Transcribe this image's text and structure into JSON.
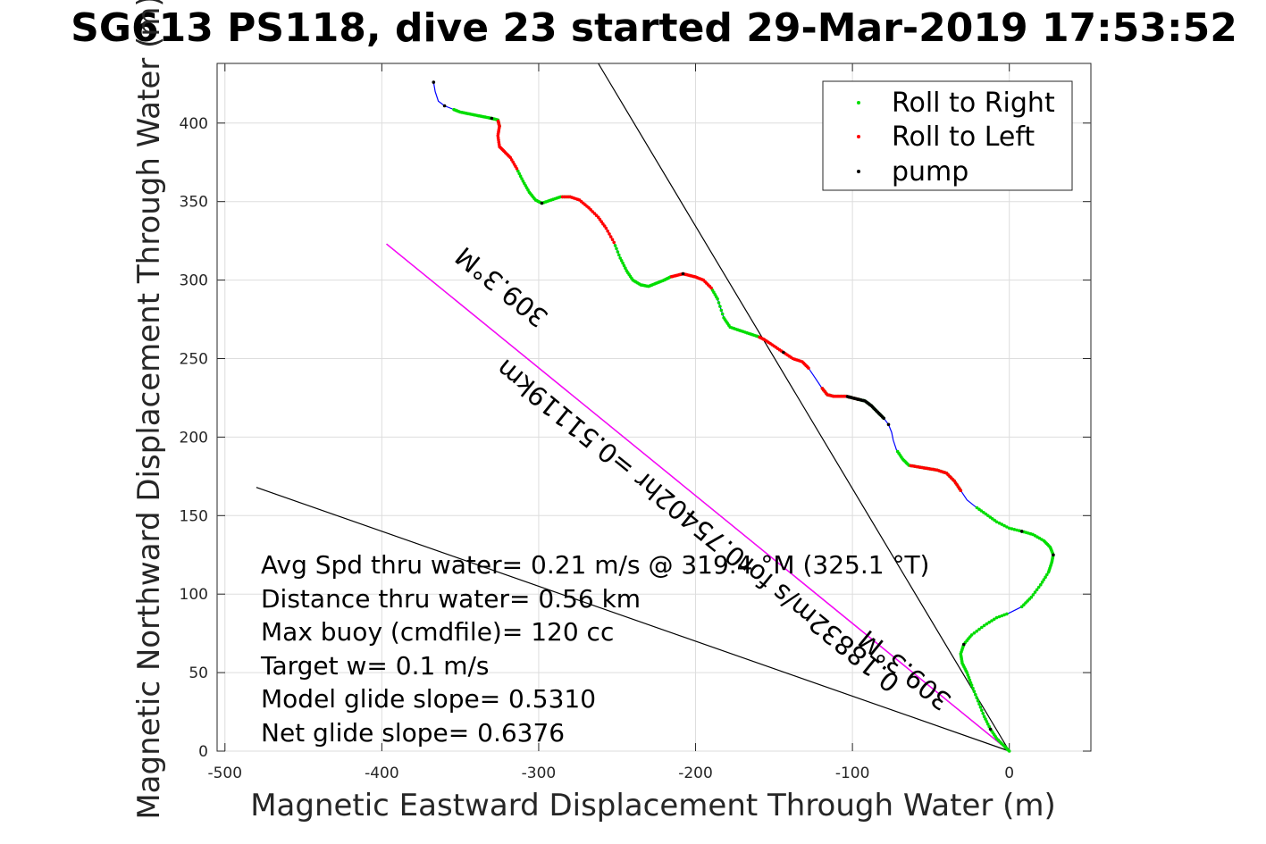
{
  "chart_data": {
    "type": "line",
    "title": "SG613 PS118, dive 23 started 29-Mar-2019 17:53:52",
    "xlabel": "Magnetic Eastward Displacement Through Water (m)",
    "ylabel": "Magnetic Northward Displacement Through Water (m)",
    "xlim": [
      -505,
      52
    ],
    "ylim": [
      0,
      438
    ],
    "xticks": [
      -500,
      -400,
      -300,
      -200,
      -100,
      0
    ],
    "xtick_labels": [
      "-500",
      "-400",
      "-300",
      "-200",
      "-100",
      "0"
    ],
    "yticks": [
      0,
      50,
      100,
      150,
      200,
      250,
      300,
      350,
      400
    ],
    "ytick_labels": [
      "0",
      "50",
      "100",
      "150",
      "200",
      "250",
      "300",
      "350",
      "400"
    ],
    "grid": true,
    "legend_position": "top-right",
    "legend": [
      {
        "label": "Roll to Right",
        "color": "#00dd00"
      },
      {
        "label": "Roll to Left",
        "color": "#ff0000"
      },
      {
        "label": "pump",
        "color": "#000000"
      }
    ],
    "track": {
      "name": "track",
      "color": "#0000ff",
      "x": [
        0,
        -3,
        -8,
        -12,
        -16,
        -20,
        -24,
        -27,
        -30,
        -31,
        -29,
        -24,
        -16,
        -8,
        0,
        8,
        14,
        20,
        25,
        27,
        28,
        26,
        22,
        15,
        8,
        0,
        -8,
        -15,
        -22,
        -27,
        -31,
        -35,
        -40,
        -46,
        -52,
        -58,
        -64,
        -68,
        -72,
        -74,
        -75,
        -77,
        -80,
        -84,
        -88,
        -92,
        -96,
        -100,
        -104,
        -108,
        -112,
        -116,
        -120,
        -124,
        -128,
        -132,
        -138,
        -144,
        -150,
        -156,
        -160,
        -166,
        -172,
        -178,
        -182,
        -186,
        -190,
        -195,
        -200,
        -204,
        -208,
        -212,
        -216,
        -220,
        -225,
        -230,
        -235,
        -240,
        -244,
        -248,
        -252,
        -257,
        -262,
        -268,
        -274,
        -280,
        -286,
        -292,
        -298,
        -302,
        -306,
        -310,
        -314,
        -318,
        -322,
        -325,
        -326,
        -325,
        -326,
        -330,
        -335,
        -340,
        -345,
        -350,
        -355,
        -360,
        -364,
        -366,
        -367
      ],
      "y": [
        0,
        3,
        8,
        14,
        22,
        32,
        42,
        50,
        56,
        62,
        68,
        74,
        80,
        85,
        88,
        92,
        98,
        106,
        114,
        120,
        125,
        130,
        134,
        138,
        140,
        142,
        146,
        151,
        156,
        160,
        166,
        172,
        177,
        179,
        180,
        181,
        182,
        186,
        192,
        198,
        203,
        208,
        212,
        216,
        220,
        223,
        224,
        225,
        226,
        226,
        226,
        227,
        232,
        238,
        244,
        248,
        250,
        254,
        258,
        262,
        264,
        266,
        268,
        270,
        276,
        288,
        295,
        300,
        302,
        303,
        304,
        303,
        302,
        300,
        298,
        296,
        297,
        300,
        306,
        314,
        324,
        333,
        340,
        346,
        351,
        353,
        353,
        351,
        349,
        351,
        356,
        363,
        371,
        378,
        382,
        385,
        392,
        398,
        402,
        403,
        404,
        405,
        406,
        407,
        409,
        411,
        414,
        420,
        426
      ]
    },
    "heading_line": {
      "label": "309.3°M",
      "x": [
        0,
        -397
      ],
      "y": [
        0,
        323
      ],
      "color": "#ff00ff"
    },
    "bound_line_1": {
      "x": [
        0,
        -262
      ],
      "y": [
        0,
        438
      ],
      "color": "#000000"
    },
    "bound_line_2": {
      "x": [
        0,
        -480
      ],
      "y": [
        0,
        168
      ],
      "color": "#000000"
    },
    "line_labels": [
      {
        "text": "309.3°M",
        "at": [
          -320,
          300
        ],
        "angle": 39.1
      },
      {
        "text": "0.18832m/s for0.75402hr =0.51119km",
        "at": [
          -195,
          148
        ],
        "angle": 39.1
      },
      {
        "text": "309.3°M",
        "at": [
          -63,
          56
        ],
        "angle": 39.1
      }
    ],
    "annotations": [
      "Avg Spd thru water=  0.21 m/s @ 319.4 °M (325.1 °T)",
      "Distance thru water=  0.56 km",
      "Max buoy (cmdfile)= 120 cc",
      "Target w= 0.1 m/s",
      "Model glide slope= 0.5310",
      "Net glide slope= 0.6376"
    ],
    "roll_right_segments": [
      [
        0,
        14
      ],
      [
        15,
        28
      ],
      [
        30,
        38
      ],
      [
        42,
        52
      ],
      [
        60,
        66
      ],
      [
        72,
        80
      ],
      [
        85,
        92
      ],
      [
        97,
        104
      ]
    ],
    "roll_left_segments": [
      [
        30,
        36
      ],
      [
        46,
        52
      ],
      [
        54,
        60
      ],
      [
        66,
        72
      ],
      [
        80,
        86
      ],
      [
        92,
        98
      ]
    ],
    "pump_segments": [
      [
        42,
        48
      ]
    ]
  }
}
